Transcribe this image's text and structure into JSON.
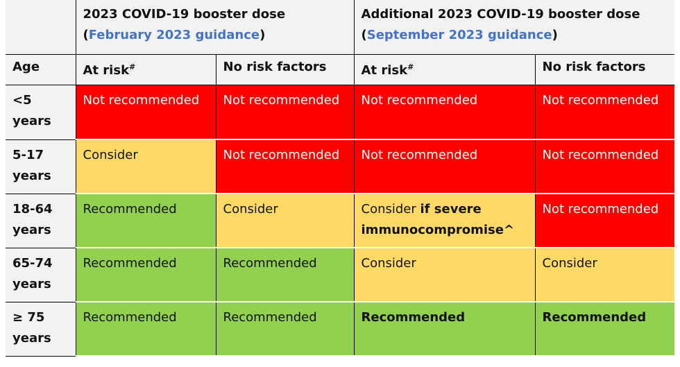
{
  "header": {
    "group1_line1": "2023 COVID-19 booster dose",
    "group1_paren_open": "(",
    "group1_link": "February 2023 guidance",
    "group1_paren_close": ")",
    "group2_line1": "Additional 2023 COVID-19 booster dose",
    "group2_paren_open": "(",
    "group2_link": "September 2023 guidance",
    "group2_paren_close": ")",
    "age_label": "Age",
    "at_risk": "At risk",
    "at_risk_mark": "#",
    "no_risk": "No risk factors"
  },
  "rows": [
    {
      "age": "<5 years",
      "c1": "Not recommended",
      "c2": "Not recommended",
      "c3": "Not recommended",
      "c4": "Not recommended"
    },
    {
      "age": "5-17 years",
      "c1": "Consider",
      "c2": "Not recommended",
      "c3": "Not recommended",
      "c4": "Not recommended"
    },
    {
      "age": "18-64 years",
      "c1": "Recommended",
      "c2": "Consider",
      "c3_prefix": "Consider ",
      "c3_bold": "if severe immunocompromise^",
      "c4": "Not recommended"
    },
    {
      "age": "65-74 years",
      "c1": "Recommended",
      "c2": "Recommended",
      "c3": "Consider",
      "c4": "Consider"
    },
    {
      "age": "≥ 75 years",
      "c1": "Recommended",
      "c2": "Recommended",
      "c3": "Recommended",
      "c4": "Recommended"
    }
  ],
  "colors": {
    "not_recommended": "#ff0000",
    "consider": "#ffd966",
    "recommended": "#92d050",
    "link": "#4472c4",
    "header_bg": "#f2f2f2"
  }
}
